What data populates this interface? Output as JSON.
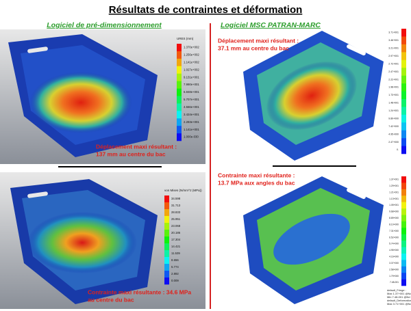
{
  "title": "Résultats de contraintes et déformation",
  "left": {
    "heading": "Logiciel de pré-dimensionnement",
    "top": {
      "legend_title": "URES (mm)",
      "legend_labels": [
        "1.370e+002",
        "1.256e+002",
        "1.141e+002",
        "1.027e+002",
        "9.131e+001",
        "7.990e+001",
        "6.848e+001",
        "5.707e+001",
        "4.566e+001",
        "3.424e+001",
        "2.283e+001",
        "1.141e+001",
        "1.000e-030"
      ],
      "caption": [
        "Déplacement maxi résultant :",
        "137 mm au centre du bac"
      ]
    },
    "bottom": {
      "legend_title": "von Mises (N/mm^2 (MPa))",
      "legend_labels": [
        "34.598",
        "31.713",
        "28.833",
        "25.951",
        "23.068",
        "20.186",
        "17.304",
        "14.421",
        "11.539",
        "8.656",
        "5.774",
        "2.892",
        "0.009"
      ],
      "caption": [
        "Contrainte maxi résultante : 34.6 MPa",
        "au centre du bac"
      ]
    }
  },
  "right": {
    "heading": "Logiciel MSC PATRAN-MARC",
    "top": {
      "legend_labels": [
        "3.71+001",
        "3.46+001",
        "3.21+001",
        "2.97+001",
        "2.72+001",
        "2.47+001",
        "2.22+001",
        "1.98+001",
        "1.73+001",
        "1.48+001",
        "1.24+001",
        "9.89+000",
        "7.42+000",
        "4.95+000",
        "2.47+000",
        "0."
      ],
      "caption": [
        "Déplacement maxi résultant :",
        "37.1 mm au centre du bac"
      ]
    },
    "bottom": {
      "legend_labels": [
        "1.37+001",
        "1.29+001",
        "1.21+001",
        "1.13+001",
        "1.05+001",
        "9.68+000",
        "8.89+000",
        "8.10+000",
        "7.31+000",
        "6.52+000",
        "5.74+000",
        "4.95+000",
        "4.16+000",
        "3.37+000",
        "2.58+000",
        "1.79+000",
        "7.48-001"
      ],
      "caption": [
        "Contrainte maxi résultante :",
        "13.7 MPa aux angles du bac"
      ],
      "footnote": [
        "default_Fringe :",
        "Max 1.37+001 @Nd 15917",
        "Min 7.48-001 @Nd 15569",
        "default_Deformation :",
        "Max 3.71+001 @Nd 5435"
      ]
    }
  }
}
